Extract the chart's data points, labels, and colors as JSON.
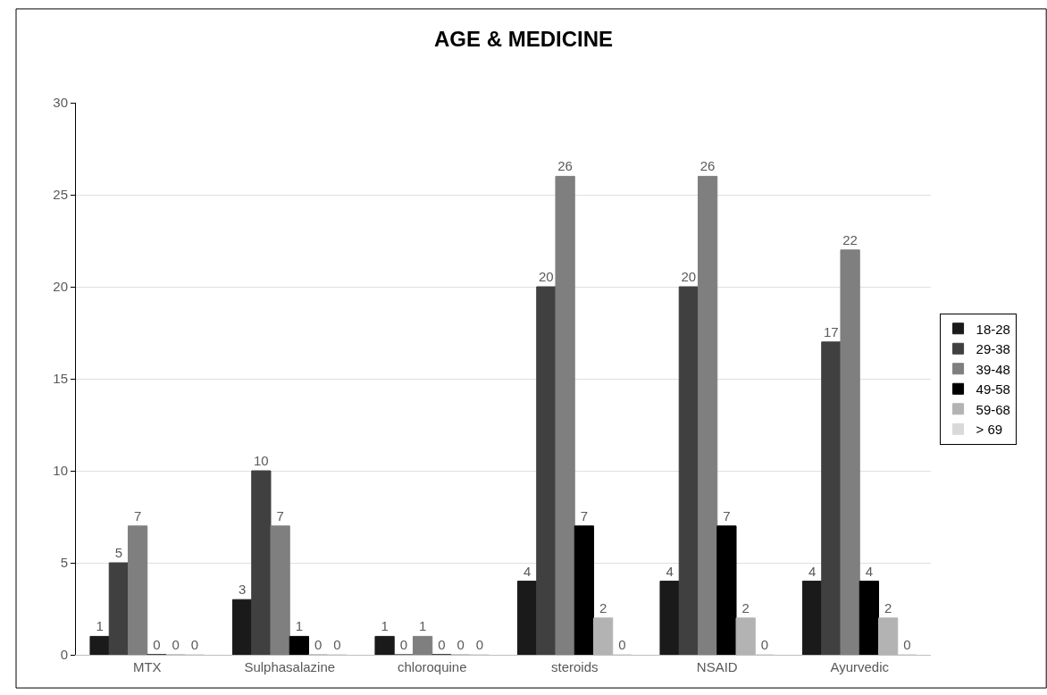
{
  "chart_data": {
    "type": "bar",
    "title": "AGE & MEDICINE",
    "categories": [
      "MTX",
      "Sulphasalazine",
      "chloroquine",
      "steroids",
      "NSAID",
      "Ayurvedic"
    ],
    "series": [
      {
        "name": "18-28",
        "color": "#1a1a1a",
        "values": [
          1,
          3,
          1,
          4,
          4,
          4
        ]
      },
      {
        "name": "29-38",
        "color": "#404040",
        "values": [
          5,
          10,
          0,
          20,
          20,
          17
        ]
      },
      {
        "name": "39-48",
        "color": "#7f7f7f",
        "values": [
          7,
          7,
          1,
          26,
          26,
          22
        ]
      },
      {
        "name": "49-58",
        "color": "#000000",
        "values": [
          0,
          1,
          0,
          7,
          7,
          4
        ]
      },
      {
        "name": "59-68",
        "color": "#b3b3b3",
        "values": [
          0,
          0,
          0,
          2,
          2,
          2
        ]
      },
      {
        "name": "> 69",
        "color": "#d9d9d9",
        "values": [
          0,
          0,
          0,
          0,
          0,
          0
        ]
      }
    ],
    "ylim": [
      0,
      30
    ],
    "yticks": [
      0,
      5,
      10,
      15,
      20,
      25,
      30
    ],
    "grid": "y",
    "legend": "right",
    "data_labels": true
  }
}
